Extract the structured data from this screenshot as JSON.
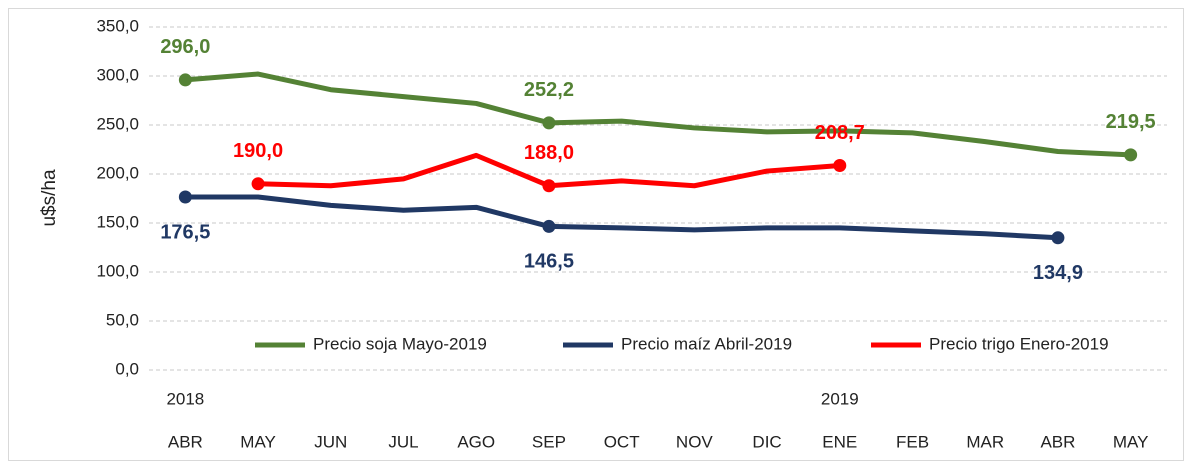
{
  "chart_data": {
    "type": "line",
    "ylabel": "u$s/ha",
    "categories": [
      "ABR",
      "MAY",
      "JUN",
      "JUL",
      "AGO",
      "SEP",
      "OCT",
      "NOV",
      "DIC",
      "ENE",
      "FEB",
      "MAR",
      "ABR",
      "MAY"
    ],
    "year_labels": [
      {
        "label": "2018",
        "category": 0
      },
      {
        "label": "2019",
        "category": 9
      }
    ],
    "ylim": [
      0,
      350
    ],
    "yticks": [
      {
        "value": 0,
        "label": "0,0"
      },
      {
        "value": 50,
        "label": "50,0"
      },
      {
        "value": 100,
        "label": "100,0"
      },
      {
        "value": 150,
        "label": "150,0"
      },
      {
        "value": 200,
        "label": "200,0"
      },
      {
        "value": 250,
        "label": "250,0"
      },
      {
        "value": 300,
        "label": "300,0"
      },
      {
        "value": 350,
        "label": "350,0"
      }
    ],
    "grid": true,
    "legend": "bottom",
    "series": [
      {
        "name": "Precio soja Mayo-2019",
        "color": "#548235",
        "label_position": "above",
        "values": [
          296.0,
          302,
          286,
          279,
          272,
          252.2,
          254,
          247,
          243,
          244,
          242,
          233,
          223,
          219.5
        ],
        "value_labels": [
          "296,0",
          null,
          null,
          null,
          null,
          "252,2",
          null,
          null,
          null,
          null,
          null,
          null,
          null,
          "219,5"
        ]
      },
      {
        "name": "Precio maíz Abril-2019",
        "color": "#203864",
        "label_position": "below",
        "values": [
          176.5,
          176.5,
          168,
          163,
          166,
          146.5,
          145,
          143,
          145,
          145,
          142,
          139,
          134.9,
          null
        ],
        "value_labels": [
          "176,5",
          null,
          null,
          null,
          null,
          "146,5",
          null,
          null,
          null,
          null,
          null,
          null,
          "134,9",
          null
        ]
      },
      {
        "name": "Precio trigo Enero-2019",
        "color": "#ff0000",
        "label_position": "above",
        "values": [
          null,
          190.0,
          188,
          195,
          219,
          188.0,
          193,
          188,
          203,
          208.7,
          null,
          null,
          null,
          null
        ],
        "value_labels": [
          null,
          "190,0",
          null,
          null,
          null,
          "188,0",
          null,
          null,
          null,
          "208,7",
          null,
          null,
          null,
          null
        ]
      }
    ]
  }
}
